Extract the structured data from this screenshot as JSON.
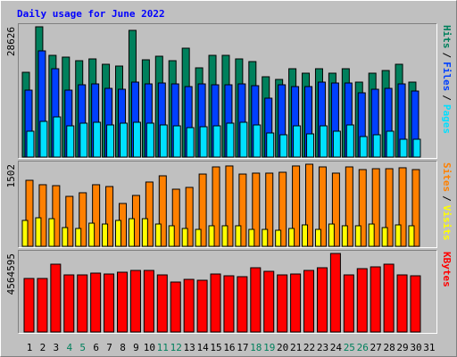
{
  "chart_data": [
    {
      "type": "bar",
      "title": "Daily usage for June 2022",
      "ylim": [
        0,
        28626
      ],
      "legend_separator": "/",
      "series": [
        {
          "name": "Hits",
          "color": "#00805c",
          "values": [
            18627,
            28626,
            22352,
            21960,
            21175,
            21568,
            20391,
            19999,
            27842,
            21372,
            22156,
            21175,
            23921,
            19607,
            22352,
            22352,
            21568,
            20979,
            17646,
            17058,
            19411,
            18431,
            19411,
            18431,
            19411,
            16470,
            18431,
            19019,
            20391,
            16470,
            null
          ]
        },
        {
          "name": "Files",
          "color": "#0040ff",
          "values": [
            14705,
            23332,
            19411,
            14705,
            15882,
            16078,
            15097,
            14901,
            16470,
            16078,
            16274,
            16078,
            15490,
            16078,
            15882,
            15882,
            16078,
            15686,
            12941,
            15882,
            15490,
            15490,
            16470,
            16274,
            16274,
            14117,
            14901,
            15097,
            16078,
            14509,
            null
          ]
        },
        {
          "name": "Pages",
          "color": "#00e0ff",
          "values": [
            5686,
            7843,
            8823,
            6862,
            7451,
            7647,
            7059,
            7451,
            7647,
            7451,
            7059,
            6862,
            6470,
            6666,
            6862,
            7451,
            7647,
            7059,
            5294,
            4902,
            6862,
            5098,
            6862,
            5686,
            7059,
            4510,
            4902,
            5686,
            3921,
            3921,
            null
          ]
        }
      ]
    },
    {
      "type": "bar",
      "ylim": [
        0,
        1502
      ],
      "legend_separator": "/",
      "series": [
        {
          "name": "Sites",
          "color": "#ff8000",
          "values": [
            1208,
            1127,
            1110,
            914,
            980,
            1127,
            1094,
            784,
            931,
            1176,
            1290,
            1045,
            1078,
            1322,
            1453,
            1470,
            1322,
            1339,
            1339,
            1355,
            1470,
            1502,
            1453,
            1339,
            1453,
            1404,
            1420,
            1420,
            1437,
            1404,
            null
          ]
        },
        {
          "name": "Visits",
          "color": "#ffff00",
          "values": [
            474,
            522,
            506,
            343,
            327,
            424,
            408,
            474,
            506,
            506,
            408,
            376,
            327,
            310,
            376,
            376,
            376,
            310,
            310,
            294,
            327,
            392,
            310,
            408,
            376,
            376,
            408,
            343,
            392,
            376,
            null
          ]
        }
      ]
    },
    {
      "type": "bar",
      "ylim": [
        0,
        4564595
      ],
      "categories": [
        "1",
        "2",
        "3",
        "4",
        "5",
        "6",
        "7",
        "8",
        "9",
        "10",
        "11",
        "12",
        "13",
        "14",
        "15",
        "16",
        "17",
        "18",
        "19",
        "20",
        "21",
        "22",
        "23",
        "24",
        "25",
        "26",
        "27",
        "28",
        "29",
        "30",
        "31"
      ],
      "highlight_indices": [
        3,
        4,
        10,
        11,
        17,
        18,
        24,
        25
      ],
      "highlight_color": "#00805c",
      "series": [
        {
          "name": "KBytes",
          "color": "#ff0000",
          "values": [
            3112200,
            3112200,
            3942120,
            3319680,
            3319680,
            3423420,
            3371550,
            3475290,
            3579030,
            3579030,
            3319680,
            2904720,
            3060330,
            3008460,
            3371550,
            3267810,
            3215940,
            3734640,
            3527160,
            3319680,
            3371550,
            3579030,
            3734640,
            4564595,
            3319680,
            3682770,
            3786510,
            3942120,
            3319680,
            3267810,
            null
          ]
        }
      ]
    }
  ]
}
